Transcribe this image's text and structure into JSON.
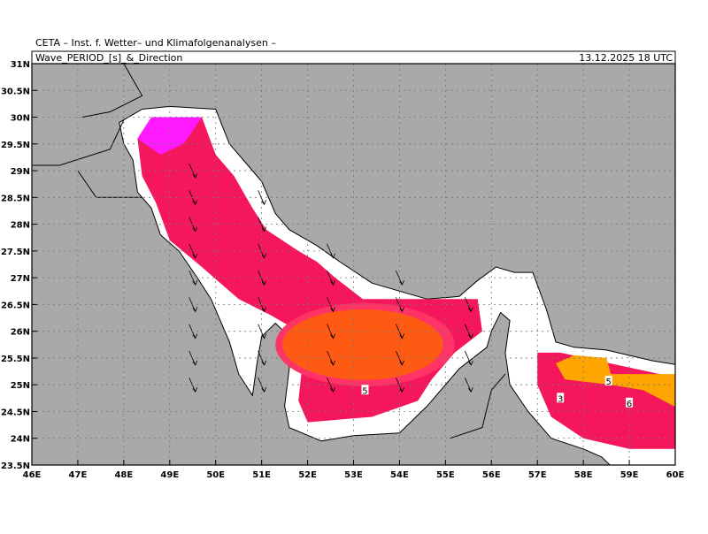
{
  "header": {
    "institute": "CETA – Inst. f. Wetter– und Klimafolgenanalysen –",
    "title": "Wave_PERIOD_[s]_&_Direction",
    "date": "13.12.2025 18 UTC"
  },
  "map": {
    "lon_ticks": [
      {
        "value": 46,
        "label": "46E"
      },
      {
        "value": 47,
        "label": "47E"
      },
      {
        "value": 48,
        "label": "48E"
      },
      {
        "value": 49,
        "label": "49E"
      },
      {
        "value": 50,
        "label": "50E"
      },
      {
        "value": 51,
        "label": "51E"
      },
      {
        "value": 52,
        "label": "52E"
      },
      {
        "value": 53,
        "label": "53E"
      },
      {
        "value": 54,
        "label": "54E"
      },
      {
        "value": 55,
        "label": "55E"
      },
      {
        "value": 56,
        "label": "56E"
      },
      {
        "value": 57,
        "label": "57E"
      },
      {
        "value": 58,
        "label": "58E"
      },
      {
        "value": 59,
        "label": "59E"
      },
      {
        "value": 60,
        "label": "60E"
      }
    ],
    "lat_ticks": [
      {
        "value": 23.5,
        "label": "23.5N"
      },
      {
        "value": 24,
        "label": "24N"
      },
      {
        "value": 24.5,
        "label": "24.5N"
      },
      {
        "value": 25,
        "label": "25N"
      },
      {
        "value": 25.5,
        "label": "25.5N"
      },
      {
        "value": 26,
        "label": "26N"
      },
      {
        "value": 26.5,
        "label": "26.5N"
      },
      {
        "value": 27,
        "label": "27N"
      },
      {
        "value": 27.5,
        "label": "27.5N"
      },
      {
        "value": 28,
        "label": "28N"
      },
      {
        "value": 28.5,
        "label": "28.5N"
      },
      {
        "value": 29,
        "label": "29N"
      },
      {
        "value": 29.5,
        "label": "29.5N"
      },
      {
        "value": 30,
        "label": "30N"
      },
      {
        "value": 30.5,
        "label": "30.5N"
      },
      {
        "value": 31,
        "label": "31N"
      }
    ],
    "contour_labels": [
      {
        "lon": 53.25,
        "lat": 24.9,
        "label": "5"
      },
      {
        "lon": 57.5,
        "lat": 24.75,
        "label": "3"
      },
      {
        "lon": 58.55,
        "lat": 25.07,
        "label": "5"
      },
      {
        "lon": 59.0,
        "lat": 24.66,
        "label": "6"
      }
    ]
  }
}
